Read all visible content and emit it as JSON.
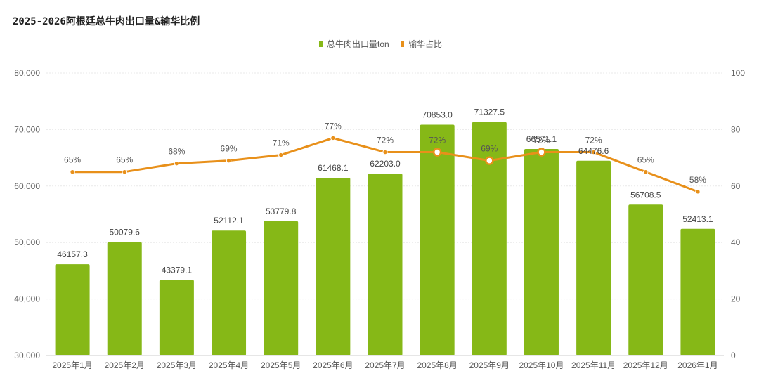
{
  "chart_data": {
    "type": "bar+line",
    "title": "2025-2026阿根廷总牛肉出口量&输华比例",
    "categories": [
      "2025年1月",
      "2025年2月",
      "2025年3月",
      "2025年4月",
      "2025年5月",
      "2025年6月",
      "2025年7月",
      "2025年8月",
      "2025年9月",
      "2025年10月",
      "2025年11月",
      "2025年12月",
      "2026年1月"
    ],
    "series": [
      {
        "name": "总牛肉出口量ton",
        "type": "bar",
        "axis": "left",
        "color": "#86b817",
        "values": [
          46157.3,
          50079.6,
          43379.1,
          52112.1,
          53779.8,
          61468.1,
          62203.0,
          70853.0,
          71327.5,
          66571.1,
          64476.6,
          56708.5,
          52413.1
        ],
        "labels": [
          "46157.3",
          "50079.6",
          "43379.1",
          "52112.1",
          "53779.8",
          "61468.1",
          "62203.0",
          "70853.0",
          "71327.5",
          "66571.1",
          "64476.6",
          "56708.5",
          "52413.1"
        ]
      },
      {
        "name": "输华占比",
        "type": "line",
        "axis": "right",
        "color": "#e8901a",
        "values": [
          65,
          65,
          68,
          69,
          71,
          77,
          72,
          72,
          69,
          72,
          72,
          65,
          58
        ],
        "labels": [
          "65%",
          "65%",
          "68%",
          "69%",
          "71%",
          "77%",
          "72%",
          "72%",
          "69%",
          "72%",
          "72%",
          "65%",
          "58%"
        ]
      }
    ],
    "y_left": {
      "min": 30000,
      "max": 80000,
      "ticks": [
        30000,
        40000,
        50000,
        60000,
        70000,
        80000
      ],
      "tick_labels": [
        "30,000",
        "40,000",
        "50,000",
        "60,000",
        "70,000",
        "80,000"
      ]
    },
    "y_right": {
      "min": 0,
      "max": 100,
      "ticks": [
        0,
        20,
        40,
        60,
        80,
        100
      ],
      "tick_labels": [
        "0",
        "20",
        "40",
        "60",
        "80",
        "100"
      ]
    },
    "legend_position": "top-center",
    "grid": true
  }
}
